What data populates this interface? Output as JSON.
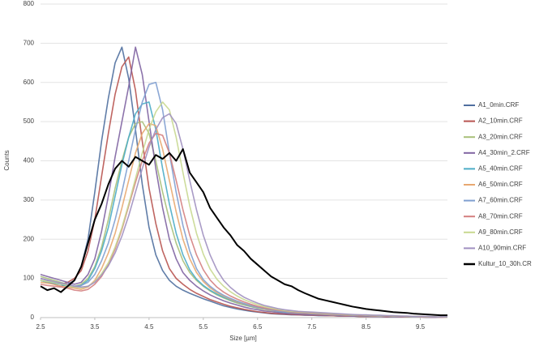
{
  "chart_data": {
    "type": "line",
    "xlabel": "Size [µm]",
    "ylabel": "Counts",
    "xlim": [
      2.5,
      10
    ],
    "xticks": [
      2.5,
      3.5,
      4.5,
      5.5,
      6.5,
      7.5,
      8.5,
      9.5
    ],
    "ylim": [
      0,
      800
    ],
    "yticks": [
      0,
      100,
      200,
      300,
      400,
      500,
      600,
      700,
      800
    ],
    "grid": true,
    "legend": "right",
    "x": [
      2.5,
      2.625,
      2.75,
      2.875,
      3.0,
      3.125,
      3.25,
      3.375,
      3.5,
      3.625,
      3.75,
      3.875,
      4.0,
      4.125,
      4.25,
      4.375,
      4.5,
      4.625,
      4.75,
      4.875,
      5.0,
      5.125,
      5.25,
      5.375,
      5.5,
      5.625,
      5.75,
      5.875,
      6.0,
      6.125,
      6.25,
      6.375,
      6.5,
      6.625,
      6.75,
      6.875,
      7.0,
      7.125,
      7.25,
      7.375,
      7.5,
      7.625,
      7.75,
      7.875,
      8.0,
      8.125,
      8.25,
      8.375,
      8.5,
      8.625,
      8.75,
      8.875,
      9.0,
      9.125,
      9.25,
      9.375,
      9.5,
      9.625,
      9.75,
      9.875,
      10.0
    ],
    "series": [
      {
        "name": "A1_0min.CRF",
        "color": "#4f6f9f",
        "values": [
          95,
          90,
          85,
          80,
          85,
          95,
          130,
          200,
          320,
          450,
          560,
          650,
          690,
          610,
          480,
          340,
          230,
          160,
          120,
          95,
          80,
          70,
          62,
          55,
          48,
          42,
          36,
          30,
          26,
          22,
          19,
          16,
          14,
          12,
          10,
          9,
          8,
          7,
          7,
          6,
          6,
          5,
          5,
          5,
          4,
          4,
          4,
          3,
          3,
          3,
          3,
          2,
          2,
          2,
          2,
          2,
          2,
          1,
          1,
          1,
          1
        ]
      },
      {
        "name": "A2_10min.CRF",
        "color": "#b85450",
        "values": [
          100,
          95,
          90,
          85,
          90,
          100,
          120,
          170,
          250,
          360,
          470,
          570,
          640,
          665,
          580,
          450,
          330,
          240,
          170,
          125,
          100,
          85,
          72,
          62,
          54,
          46,
          40,
          34,
          29,
          25,
          21,
          18,
          15,
          13,
          11,
          10,
          9,
          8,
          7,
          7,
          6,
          6,
          5,
          5,
          4,
          4,
          4,
          3,
          3,
          3,
          3,
          2,
          2,
          2,
          2,
          2,
          2,
          1,
          1,
          1,
          1
        ]
      },
      {
        "name": "A3_20min.CRF",
        "color": "#a9c07a",
        "values": [
          105,
          100,
          95,
          90,
          85,
          80,
          85,
          100,
          130,
          180,
          250,
          330,
          400,
          460,
          495,
          500,
          470,
          400,
          320,
          250,
          190,
          145,
          115,
          95,
          80,
          68,
          58,
          50,
          43,
          37,
          32,
          28,
          24,
          21,
          18,
          16,
          14,
          13,
          12,
          11,
          10,
          9,
          8,
          7,
          7,
          6,
          6,
          5,
          5,
          4,
          4,
          4,
          3,
          3,
          3,
          2,
          2,
          2,
          2,
          1,
          1
        ]
      },
      {
        "name": "A4_30min_2.CRF",
        "color": "#8064a2",
        "values": [
          110,
          105,
          100,
          95,
          90,
          85,
          90,
          110,
          150,
          220,
          310,
          410,
          500,
          590,
          690,
          620,
          500,
          380,
          280,
          200,
          150,
          115,
          95,
          80,
          68,
          58,
          50,
          43,
          37,
          32,
          27,
          23,
          20,
          17,
          15,
          13,
          11,
          10,
          9,
          8,
          7,
          7,
          6,
          6,
          5,
          5,
          4,
          4,
          4,
          3,
          3,
          3,
          2,
          2,
          2,
          2,
          2,
          1,
          1,
          1,
          1
        ]
      },
      {
        "name": "A5_40min.CRF",
        "color": "#4bacc6",
        "values": [
          95,
          90,
          88,
          85,
          80,
          78,
          82,
          95,
          125,
          170,
          230,
          310,
          390,
          460,
          520,
          545,
          550,
          480,
          380,
          290,
          215,
          160,
          122,
          98,
          82,
          70,
          60,
          52,
          45,
          39,
          34,
          29,
          25,
          22,
          19,
          16,
          14,
          13,
          12,
          11,
          10,
          9,
          8,
          7,
          7,
          6,
          6,
          5,
          5,
          4,
          4,
          4,
          3,
          3,
          3,
          2,
          2,
          2,
          2,
          1,
          1
        ]
      },
      {
        "name": "A6_50min.CRF",
        "color": "#e8a870",
        "values": [
          90,
          88,
          85,
          80,
          78,
          75,
          72,
          78,
          95,
          125,
          165,
          215,
          280,
          350,
          420,
          470,
          495,
          490,
          430,
          350,
          270,
          200,
          150,
          115,
          92,
          76,
          64,
          55,
          47,
          40,
          35,
          30,
          26,
          22,
          19,
          17,
          15,
          13,
          12,
          11,
          10,
          9,
          8,
          7,
          7,
          6,
          6,
          5,
          5,
          4,
          4,
          4,
          3,
          3,
          3,
          2,
          2,
          2,
          2,
          1,
          1
        ]
      },
      {
        "name": "A7_60min.CRF",
        "color": "#7f9fd0",
        "values": [
          100,
          95,
          90,
          88,
          85,
          80,
          82,
          90,
          110,
          145,
          190,
          250,
          320,
          400,
          480,
          550,
          595,
          600,
          530,
          420,
          320,
          235,
          170,
          125,
          97,
          80,
          67,
          57,
          49,
          42,
          36,
          31,
          27,
          23,
          20,
          17,
          15,
          14,
          13,
          12,
          11,
          10,
          9,
          8,
          7,
          7,
          6,
          6,
          5,
          5,
          4,
          4,
          3,
          3,
          3,
          2,
          2,
          2,
          2,
          1,
          1
        ]
      },
      {
        "name": "A8_70min.CRF",
        "color": "#d47f7f",
        "values": [
          85,
          82,
          80,
          78,
          75,
          70,
          68,
          72,
          85,
          105,
          135,
          175,
          225,
          285,
          345,
          400,
          445,
          470,
          465,
          420,
          350,
          275,
          210,
          160,
          122,
          96,
          78,
          65,
          55,
          47,
          40,
          34,
          29,
          25,
          22,
          19,
          17,
          15,
          14,
          13,
          12,
          11,
          10,
          9,
          8,
          7,
          7,
          6,
          6,
          5,
          5,
          4,
          4,
          3,
          3,
          3,
          2,
          2,
          2,
          1,
          1
        ]
      },
      {
        "name": "A9_80min.CRF",
        "color": "#c8d890",
        "values": [
          95,
          92,
          90,
          86,
          82,
          78,
          76,
          80,
          92,
          112,
          140,
          180,
          230,
          290,
          355,
          420,
          480,
          525,
          550,
          530,
          460,
          370,
          285,
          215,
          162,
          124,
          98,
          80,
          66,
          55,
          46,
          39,
          33,
          28,
          24,
          21,
          18,
          16,
          15,
          14,
          13,
          12,
          11,
          10,
          9,
          8,
          7,
          7,
          6,
          6,
          5,
          5,
          4,
          4,
          3,
          3,
          3,
          2,
          2,
          2,
          1
        ]
      },
      {
        "name": "A10_90min.CRF",
        "color": "#a090c0",
        "values": [
          100,
          96,
          92,
          88,
          85,
          80,
          78,
          80,
          90,
          108,
          132,
          165,
          208,
          260,
          320,
          380,
          435,
          480,
          510,
          520,
          495,
          430,
          350,
          275,
          210,
          160,
          122,
          95,
          77,
          63,
          52,
          44,
          37,
          31,
          27,
          23,
          20,
          18,
          16,
          15,
          14,
          13,
          12,
          11,
          10,
          9,
          8,
          7,
          7,
          6,
          6,
          5,
          5,
          4,
          4,
          3,
          3,
          3,
          2,
          2,
          2
        ]
      },
      {
        "name": "Kultur_10_30h.CR",
        "color": "#000000",
        "values": [
          80,
          70,
          75,
          65,
          80,
          95,
          130,
          190,
          250,
          290,
          340,
          380,
          400,
          385,
          410,
          400,
          390,
          415,
          405,
          420,
          400,
          430,
          370,
          345,
          320,
          280,
          255,
          230,
          210,
          185,
          170,
          150,
          135,
          120,
          105,
          95,
          85,
          80,
          70,
          62,
          55,
          48,
          44,
          40,
          36,
          32,
          28,
          25,
          22,
          20,
          18,
          16,
          14,
          13,
          12,
          10,
          9,
          8,
          7,
          6,
          6
        ]
      }
    ]
  }
}
